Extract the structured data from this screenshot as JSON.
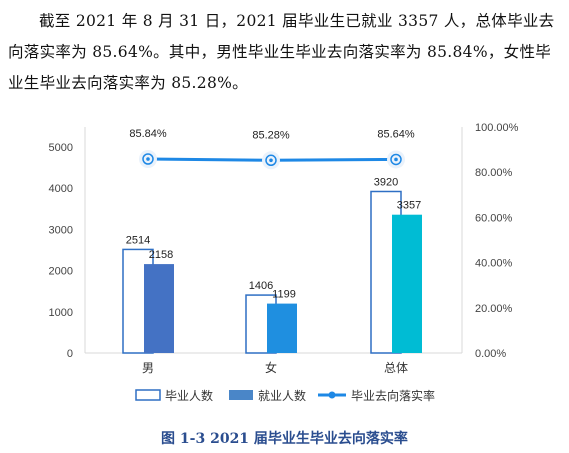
{
  "paragraph": "截至 2021 年 8 月 31 日，2021 届毕业生已就业 3357 人，总体毕业去向落实率为 85.64%。其中，男性毕业生毕业去向落实率为 85.84%，女性毕业生毕业去向落实率为 85.28%。",
  "caption": "图 1-3 2021 届毕业生毕业去向落实率",
  "chart_data": {
    "type": "bar",
    "categories": [
      "男",
      "女",
      "总体"
    ],
    "series": [
      {
        "name": "毕业人数",
        "values": [
          2514,
          1406,
          3920
        ],
        "style": "outline",
        "color": "#2e6fc4"
      },
      {
        "name": "就业人数",
        "values": [
          2158,
          1199,
          3357
        ],
        "style": "filled",
        "colors": [
          "#4472c4",
          "#1f8fe0",
          "#00bcd4"
        ]
      },
      {
        "name": "毕业去向落实率",
        "values": [
          85.84,
          85.28,
          85.64
        ],
        "style": "line",
        "axis": "right",
        "color": "#1e88e5"
      }
    ],
    "point_labels": [
      "85.84%",
      "85.28%",
      "85.64%"
    ],
    "ylim": [
      0,
      5000
    ],
    "y_ticks": [
      "0",
      "1000",
      "2000",
      "3000",
      "4000",
      "5000"
    ],
    "y2lim": [
      0,
      100
    ],
    "y2_ticks": [
      "0.00%",
      "20.00%",
      "40.00%",
      "60.00%",
      "80.00%",
      "100.00%"
    ],
    "legend": [
      "毕业人数",
      "就业人数",
      "毕业去向落实率"
    ],
    "legend_position": "bottom",
    "grid": false
  }
}
